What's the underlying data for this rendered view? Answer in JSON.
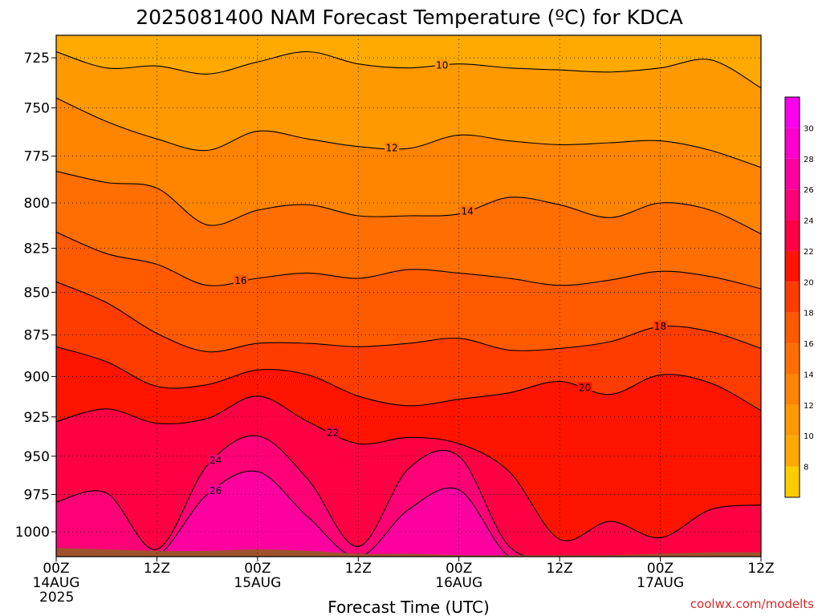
{
  "chart_data": {
    "type": "heatmap",
    "title": "2025081400 NAM Forecast Temperature (ºC) for KDCA",
    "xlabel": "Forecast Time (UTC)",
    "ylabel": "",
    "credit": "coolwx.com/modelts",
    "x_ticks": [
      {
        "hour": 0,
        "lines": [
          "00Z",
          "14AUG",
          "2025"
        ]
      },
      {
        "hour": 12,
        "lines": [
          "12Z"
        ]
      },
      {
        "hour": 24,
        "lines": [
          "00Z",
          "15AUG"
        ]
      },
      {
        "hour": 36,
        "lines": [
          "12Z"
        ]
      },
      {
        "hour": 48,
        "lines": [
          "00Z",
          "16AUG"
        ]
      },
      {
        "hour": 60,
        "lines": [
          "12Z"
        ]
      },
      {
        "hour": 72,
        "lines": [
          "00Z",
          "17AUG"
        ]
      },
      {
        "hour": 84,
        "lines": [
          "12Z"
        ]
      }
    ],
    "xlim_hours": [
      0,
      84
    ],
    "y_ticks": [
      725,
      750,
      775,
      800,
      825,
      850,
      875,
      900,
      925,
      950,
      975,
      1000
    ],
    "ylim_hpa": [
      714,
      1017
    ],
    "grid": true,
    "colorbar": {
      "ticks": [
        8,
        10,
        12,
        14,
        16,
        18,
        20,
        22,
        24,
        26,
        28,
        30
      ],
      "colors": [
        "#ffcc00",
        "#ffaa00",
        "#ff9900",
        "#ff8400",
        "#ff6e00",
        "#ff5a00",
        "#ff3c00",
        "#ff1400",
        "#ff0044",
        "#ff0077",
        "#ff00a0",
        "#ff00cc",
        "#ff00ee"
      ]
    },
    "ground_color": "#a0522d",
    "x_hours": [
      0,
      6,
      12,
      18,
      24,
      30,
      36,
      42,
      48,
      54,
      60,
      66,
      72,
      78,
      84
    ],
    "isotherms": [
      {
        "value": 10,
        "label": "10",
        "pressure": [
          722,
          730,
          729,
          733,
          727,
          722,
          728,
          730,
          728,
          730,
          731,
          732,
          730,
          726,
          740
        ]
      },
      {
        "value": 12,
        "label": "12",
        "pressure": [
          745,
          757,
          766,
          772,
          762,
          766,
          770,
          771,
          764,
          767,
          769,
          768,
          767,
          772,
          781
        ]
      },
      {
        "value": 14,
        "label": "14",
        "pressure": [
          783,
          789,
          792,
          812,
          804,
          801,
          807,
          807,
          806,
          797,
          801,
          808,
          800,
          804,
          817
        ]
      },
      {
        "value": 16,
        "label": "16",
        "pressure": [
          816,
          828,
          834,
          846,
          842,
          839,
          842,
          837,
          839,
          842,
          846,
          843,
          838,
          841,
          848
        ]
      },
      {
        "value": 18,
        "label": "18",
        "pressure": [
          844,
          856,
          874,
          885,
          880,
          880,
          882,
          880,
          877,
          884,
          883,
          879,
          870,
          873,
          883
        ]
      },
      {
        "value": 20,
        "label": "20",
        "pressure": [
          882,
          891,
          906,
          905,
          896,
          899,
          912,
          918,
          914,
          910,
          903,
          911,
          899,
          904,
          921
        ]
      },
      {
        "value": 22,
        "label": "22",
        "pressure": [
          928,
          920,
          929,
          926,
          912,
          928,
          942,
          938,
          942,
          960,
          1005,
          993,
          1004,
          985,
          982
        ]
      },
      {
        "value": 24,
        "label": "24",
        "pressure": [
          980,
          974,
          1012,
          956,
          937,
          965,
          1010,
          958,
          950,
          1010,
          1017,
          1017,
          1017,
          1017,
          1017
        ]
      },
      {
        "value": 26,
        "label": "26",
        "pressure": [
          1017,
          1017,
          1017,
          975,
          960,
          990,
          1017,
          985,
          972,
          1017,
          1017,
          1017,
          1017,
          1017,
          1017
        ]
      }
    ],
    "ground_pressure": [
      1011,
      1012,
      1013,
      1013,
      1012,
      1013,
      1015,
      1015,
      1016,
      1016,
      1016,
      1016,
      1015,
      1014,
      1014
    ]
  }
}
